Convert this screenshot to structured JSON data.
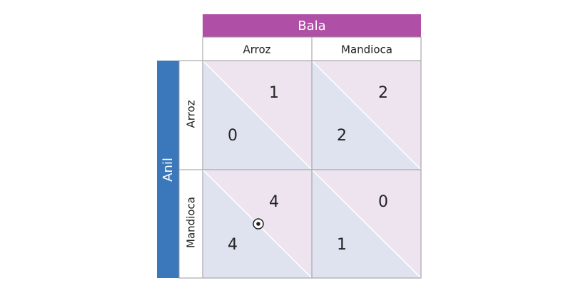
{
  "column_player": "Bala",
  "row_player": "Anil",
  "columns": [
    "Arroz",
    "Mandioca"
  ],
  "rows": [
    "Arroz",
    "Mandioca"
  ],
  "payoffs": [
    [
      {
        "row_player": 0,
        "column_player": 1
      },
      {
        "row_player": 2,
        "column_player": 2
      }
    ],
    [
      {
        "row_player": 4,
        "column_player": 4
      },
      {
        "row_player": 1,
        "column_player": 0
      }
    ]
  ]
}
